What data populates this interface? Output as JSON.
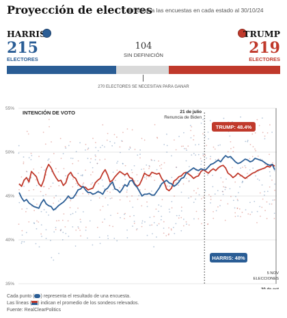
{
  "header": {
    "title": "Proyección de electores",
    "subtitle": "En base a las encuestas en cada estado al 30/10/24"
  },
  "harris": {
    "name": "HARRIS",
    "electors": "215",
    "label": "ELECTORES"
  },
  "trump": {
    "name": "TRUMP",
    "electors": "219",
    "label": "ELECTORES"
  },
  "undecided": {
    "value": "104",
    "label": "SIN DEFINICIÓN"
  },
  "threshold_label": "270 ELECTORES SE NECESITAN PARA GANAR",
  "colors": {
    "harris": "#2a5d95",
    "trump": "#c0392b",
    "undecided": "#d9d9d9"
  },
  "chart_data": {
    "type": "scatter",
    "title": "INTENCIÓN DE VOTO",
    "ylim": [
      35,
      55
    ],
    "y_ticks": [
      "35%",
      "40%",
      "45%",
      "50%",
      "55%"
    ],
    "grid": true,
    "x_ticks": [
      "30 de oct",
      "5 NOV ELECCIONES"
    ],
    "annotation": {
      "date": "21 de julio",
      "text": "Renuncia de Biden",
      "x": 0.72
    },
    "series": [
      {
        "name": "TRUMP: 48.4%",
        "color": "#c0392b",
        "values": [
          46.4,
          46.1,
          46.8,
          47.1,
          46.6,
          47.8,
          47.5,
          47.2,
          46.4,
          46.1,
          46.8,
          48.0,
          48.6,
          48.2,
          47.6,
          47.1,
          46.7,
          46.8,
          46.2,
          46.5,
          47.4,
          47.7,
          47.2,
          47.0,
          46.4,
          46.1,
          46.0,
          46.0,
          45.7,
          45.8,
          45.9,
          46.5,
          46.8,
          47.0,
          47.6,
          48.0,
          47.4,
          46.6,
          46.8,
          47.2,
          47.5,
          47.8,
          47.6,
          47.4,
          47.6,
          47.1,
          47.0,
          46.4,
          46.1,
          46.3,
          46.9,
          47.6,
          47.4,
          47.3,
          47.7,
          47.6,
          47.5,
          47.6,
          47.0,
          46.6,
          45.8,
          45.6,
          45.9,
          46.7,
          46.9,
          47.2,
          47.3,
          47.6,
          47.7,
          47.5,
          47.3,
          47.0,
          47.2,
          47.3,
          47.8,
          48.0,
          47.8,
          47.6,
          47.9,
          48.1,
          47.9,
          48.2,
          48.4,
          48.5,
          48.2,
          47.6,
          47.4,
          47.1,
          47.3,
          47.6,
          47.4,
          47.2,
          47.0,
          47.2,
          47.4,
          47.6,
          47.7,
          47.9,
          48.0,
          48.1,
          48.2,
          48.4,
          48.3,
          48.6,
          48.4
        ]
      },
      {
        "name": "HARRIS: 48%",
        "color": "#2a5d95",
        "values": [
          45.4,
          44.8,
          44.4,
          44.6,
          44.2,
          44.0,
          43.8,
          43.7,
          43.6,
          44.2,
          44.6,
          44.1,
          43.9,
          43.8,
          43.4,
          43.6,
          43.9,
          44.1,
          44.3,
          44.6,
          45.0,
          44.7,
          44.8,
          45.2,
          45.7,
          45.8,
          46.1,
          45.7,
          45.4,
          45.4,
          45.2,
          45.3,
          45.5,
          45.4,
          45.2,
          45.7,
          45.9,
          46.3,
          46.6,
          45.8,
          45.7,
          45.4,
          45.8,
          46.3,
          46.1,
          46.7,
          46.8,
          46.3,
          46.0,
          45.5,
          45.0,
          45.2,
          45.2,
          45.3,
          45.1,
          45.1,
          45.5,
          45.9,
          46.4,
          46.6,
          46.8,
          46.5,
          46.4,
          46.1,
          46.3,
          46.6,
          47.0,
          47.1,
          47.6,
          47.8,
          48.0,
          48.2,
          48.0,
          47.9,
          48.1,
          48.0,
          48.0,
          48.3,
          48.6,
          48.7,
          48.9,
          49.1,
          48.9,
          49.3,
          49.6,
          49.4,
          49.5,
          49.2,
          48.9,
          48.7,
          48.8,
          49.0,
          49.2,
          49.1,
          48.9,
          49.0,
          49.3,
          49.2,
          49.1,
          49.0,
          48.8,
          48.6,
          48.5,
          48.6,
          48.0
        ]
      }
    ]
  },
  "notes": {
    "line1a": "Cada punto (",
    "line1b": ") representa el resultado de una encuesta.",
    "line2a": "Las líneas (",
    "line2b": ") indican el promedio de los sondeos relevados.",
    "line3": "Fuente: RealClearPolitics"
  }
}
